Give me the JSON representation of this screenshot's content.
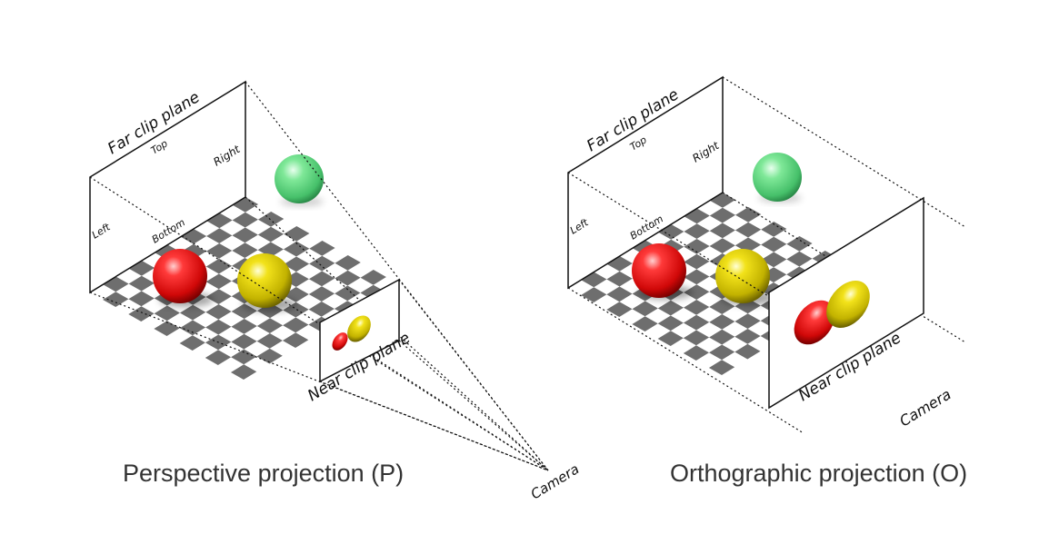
{
  "perspective": {
    "far_label": "Far clip plane",
    "top_label": "Top",
    "right_label": "Right",
    "left_label": "Left",
    "bottom_label": "Bottom",
    "near_label": "Near clip plane",
    "camera_label": "Camera",
    "caption": "Perspective projection (P)"
  },
  "orthographic": {
    "far_label": "Far clip plane",
    "top_label": "Top",
    "right_label": "Right",
    "left_label": "Left",
    "bottom_label": "Bottom",
    "near_label": "Near clip plane",
    "camera_label": "Camera",
    "caption": "Orthographic projection (O)"
  },
  "colors": {
    "red_sphere": "#e01010",
    "yellow_sphere": "#d4c400",
    "green_sphere": "#5fd880",
    "checker_dark": "#6e6e6e",
    "checker_light": "#ffffff"
  }
}
